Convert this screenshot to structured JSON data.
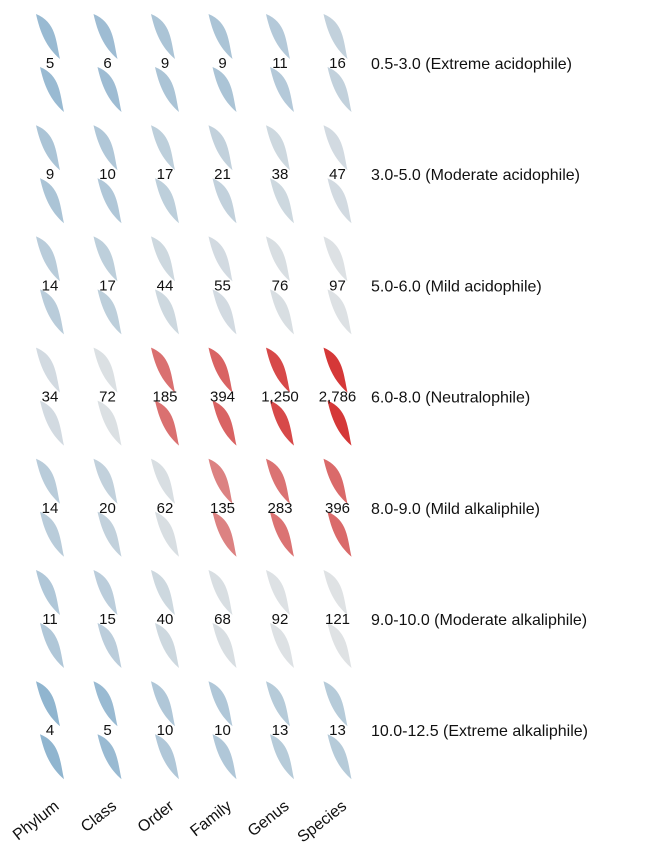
{
  "chart_data": {
    "type": "heatmap",
    "columns": [
      "Phylum",
      "Class",
      "Order",
      "Family",
      "Genus",
      "Species"
    ],
    "rows": [
      "0.5-3.0 (Extreme acidophile)",
      "3.0-5.0 (Moderate acidophile)",
      "5.0-6.0 (Mild acidophile)",
      "6.0-8.0 (Neutralophile)",
      "8.0-9.0 (Mild alkaliphile)",
      "9.0-10.0 (Moderate alkaliphile)",
      "10.0-12.5 (Extreme alkaliphile)"
    ],
    "values": [
      [
        5,
        6,
        9,
        9,
        11,
        16
      ],
      [
        9,
        10,
        17,
        21,
        38,
        47
      ],
      [
        14,
        17,
        44,
        55,
        76,
        97
      ],
      [
        34,
        72,
        185,
        394,
        1250,
        2786
      ],
      [
        14,
        20,
        62,
        135,
        283,
        396
      ],
      [
        11,
        15,
        40,
        68,
        92,
        121
      ],
      [
        4,
        5,
        10,
        10,
        13,
        13
      ]
    ],
    "value_labels": [
      [
        "5",
        "6",
        "9",
        "9",
        "11",
        "16"
      ],
      [
        "9",
        "10",
        "17",
        "21",
        "38",
        "47"
      ],
      [
        "14",
        "17",
        "44",
        "55",
        "76",
        "97"
      ],
      [
        "34",
        "72",
        "185",
        "394",
        "1,250",
        "2,786"
      ],
      [
        "14",
        "20",
        "62",
        "135",
        "283",
        "396"
      ],
      [
        "11",
        "15",
        "40",
        "68",
        "92",
        "121"
      ],
      [
        "4",
        "5",
        "10",
        "10",
        "13",
        "13"
      ]
    ],
    "color_scale": {
      "low": "#8fb4cf",
      "mid": "#e6e6e6",
      "high": "#d42d2d"
    },
    "color_intensity": [
      [
        0.34,
        0.32,
        0.26,
        0.26,
        0.22,
        0.16
      ],
      [
        0.26,
        0.24,
        0.18,
        0.16,
        0.11,
        0.09
      ],
      [
        0.2,
        0.18,
        0.11,
        0.09,
        0.06,
        0.04
      ],
      [
        0.09,
        0.05,
        0.64,
        0.71,
        0.85,
        0.94
      ],
      [
        0.2,
        0.16,
        0.06,
        0.54,
        0.62,
        0.67
      ],
      [
        0.24,
        0.19,
        0.11,
        0.06,
        0.04,
        0.03
      ],
      [
        0.38,
        0.34,
        0.24,
        0.24,
        0.21,
        0.21
      ]
    ],
    "xlabel": "",
    "ylabel": ""
  }
}
